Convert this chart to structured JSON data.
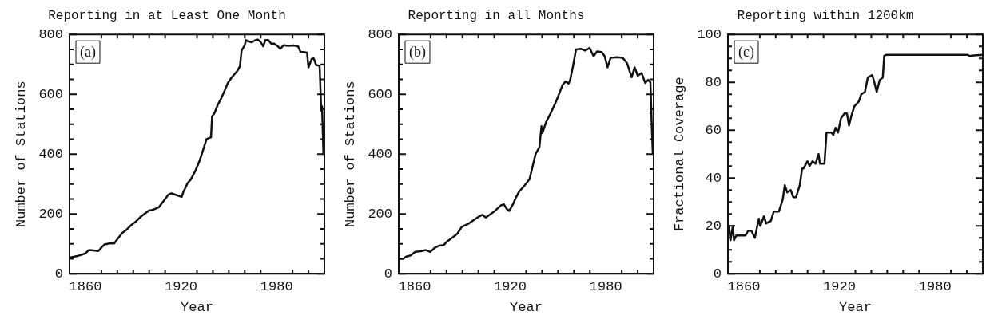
{
  "chart_data": [
    {
      "type": "line",
      "title": "Reporting in at Least One Month",
      "xlabel": "Year",
      "ylabel": "Number of Stations",
      "annotations": [
        "(a)"
      ],
      "x": [
        1850,
        1854.9,
        1860,
        1862.1,
        1865.1,
        1868.1,
        1869.9,
        1872,
        1875,
        1878,
        1880,
        1883,
        1886,
        1889,
        1892,
        1895,
        1898,
        1899.8,
        1902,
        1906,
        1908,
        1910,
        1912,
        1914,
        1916.6,
        1920.4,
        1921.5,
        1924,
        1926,
        1929,
        1931.6,
        1934.4,
        1936,
        1938.8,
        1939.5,
        1941,
        1943,
        1945,
        1947.6,
        1949.4,
        1951.9,
        1954,
        1955.6,
        1957,
        1958,
        1960,
        1960.7,
        1962,
        1964.4,
        1966.3,
        1968.2,
        1970,
        1971.6,
        1972.9,
        1974.8,
        1976.6,
        1978.5,
        1980.4,
        1982.3,
        1984.5,
        1987,
        1990.7,
        1993.5,
        1995,
        1996.9,
        1999.1,
        2000,
        2002,
        2003.3,
        2004.8,
        2007,
        2008,
        2008.5,
        2009.4
      ],
      "series": [
        {
          "color": "#111111",
          "values": [
            54,
            59,
            68,
            79,
            78,
            76,
            87,
            98,
            101,
            101,
            115,
            136,
            148,
            164,
            176,
            192,
            204,
            211,
            213,
            222,
            236,
            250,
            264,
            269,
            264,
            257,
            274,
            302,
            314,
            344,
            377,
            423,
            450,
            456,
            526,
            537,
            564,
            584,
            615,
            638,
            657,
            670,
            680,
            694,
            746,
            764,
            781,
            777,
            774,
            780,
            783,
            774,
            760,
            781,
            781,
            769,
            769,
            762,
            752,
            764,
            762,
            763,
            760,
            742,
            741,
            739,
            690,
            718,
            720,
            698,
            695,
            545,
            560,
            400
          ]
        }
      ],
      "xlim": [
        1850,
        2010
      ],
      "xticks": [
        {
          "value": 1850,
          "label": null
        },
        1860,
        {
          "value": 1870,
          "label": null
        },
        {
          "value": 1880,
          "label": null
        },
        {
          "value": 1890,
          "label": null
        },
        {
          "value": 1900,
          "label": null
        },
        {
          "value": 1910,
          "label": null
        },
        1920,
        {
          "value": 1930,
          "label": null
        },
        {
          "value": 1940,
          "label": null
        },
        {
          "value": 1950,
          "label": null
        },
        {
          "value": 1960,
          "label": null
        },
        {
          "value": 1970,
          "label": null
        },
        1980,
        {
          "value": 1990,
          "label": null
        },
        {
          "value": 2000,
          "label": null
        },
        {
          "value": 2010,
          "label": null
        }
      ],
      "ylim": [
        0,
        800
      ],
      "yticks": [
        0,
        {
          "value": 50,
          "label": null
        },
        {
          "value": 100,
          "label": null
        },
        {
          "value": 150,
          "label": null
        },
        200,
        {
          "value": 250,
          "label": null
        },
        {
          "value": 300,
          "label": null
        },
        {
          "value": 350,
          "label": null
        },
        400,
        {
          "value": 450,
          "label": null
        },
        {
          "value": 500,
          "label": null
        },
        {
          "value": 550,
          "label": null
        },
        600,
        {
          "value": 650,
          "label": null
        },
        {
          "value": 700,
          "label": null
        },
        {
          "value": 750,
          "label": null
        },
        800
      ]
    },
    {
      "type": "line",
      "title": "Reporting in all Months",
      "xlabel": "Year",
      "ylabel": "Number of Stations",
      "annotations": [
        "(b)"
      ],
      "x": [
        1850,
        1852.8,
        1854.7,
        1857.5,
        1860.4,
        1864,
        1867,
        1869.8,
        1872.6,
        1875.5,
        1878.3,
        1880.2,
        1884,
        1886.8,
        1889.6,
        1893.4,
        1897.2,
        1900,
        1902.5,
        1904.7,
        1907.6,
        1910.4,
        1914.2,
        1916,
        1917.6,
        1919.4,
        1921.7,
        1923.6,
        1925.5,
        1929.3,
        1932.1,
        1934,
        1935.9,
        1938.3,
        1939.6,
        1940.2,
        1942.5,
        1945.3,
        1948.1,
        1950,
        1952.8,
        1954.7,
        1956.6,
        1957.6,
        1959.4,
        1961.3,
        1964.2,
        1967,
        1969.8,
        1972.3,
        1974.5,
        1977.4,
        1979.3,
        1981.1,
        1983,
        1986.8,
        1990.6,
        1993.4,
        1996.2,
        1998.1,
        2000,
        2002.5,
        2004.7,
        2006.6,
        2008,
        2008.8,
        2009.5
      ],
      "series": [
        {
          "color": "#111111",
          "values": [
            51,
            50,
            57,
            61,
            73,
            75,
            79,
            73,
            87,
            94,
            96,
            107,
            122,
            134,
            157,
            166,
            180,
            190,
            197,
            188,
            199,
            210,
            229,
            232,
            218,
            210,
            232,
            255,
            274,
            297,
            316,
            358,
            400,
            423,
            493,
            470,
            507,
            536,
            568,
            592,
            631,
            643,
            636,
            648,
            694,
            750,
            752,
            746,
            755,
            727,
            743,
            741,
            727,
            690,
            722,
            724,
            722,
            703,
            657,
            690,
            662,
            671,
            638,
            648,
            640,
            500,
            400
          ]
        }
      ],
      "xlim": [
        1850,
        2010
      ],
      "xticks": [
        {
          "value": 1850,
          "label": null
        },
        1860,
        {
          "value": 1870,
          "label": null
        },
        {
          "value": 1880,
          "label": null
        },
        {
          "value": 1890,
          "label": null
        },
        {
          "value": 1900,
          "label": null
        },
        {
          "value": 1910,
          "label": null
        },
        1920,
        {
          "value": 1930,
          "label": null
        },
        {
          "value": 1940,
          "label": null
        },
        {
          "value": 1950,
          "label": null
        },
        {
          "value": 1960,
          "label": null
        },
        {
          "value": 1970,
          "label": null
        },
        1980,
        {
          "value": 1990,
          "label": null
        },
        {
          "value": 2000,
          "label": null
        },
        {
          "value": 2010,
          "label": null
        }
      ],
      "ylim": [
        0,
        800
      ],
      "yticks": [
        0,
        {
          "value": 50,
          "label": null
        },
        {
          "value": 100,
          "label": null
        },
        {
          "value": 150,
          "label": null
        },
        200,
        {
          "value": 250,
          "label": null
        },
        {
          "value": 300,
          "label": null
        },
        {
          "value": 350,
          "label": null
        },
        400,
        {
          "value": 450,
          "label": null
        },
        {
          "value": 500,
          "label": null
        },
        {
          "value": 550,
          "label": null
        },
        600,
        {
          "value": 650,
          "label": null
        },
        {
          "value": 700,
          "label": null
        },
        {
          "value": 750,
          "label": null
        },
        800
      ]
    },
    {
      "type": "line",
      "title": "Reporting within 1200km",
      "xlabel": "Year",
      "ylabel": "Fractional Coverage",
      "annotations": [
        "(c)"
      ],
      "x": [
        1850,
        1850.6,
        1851.6,
        1853.1,
        1853.8,
        1855.3,
        1861,
        1862.8,
        1864.7,
        1866.9,
        1869.4,
        1870.3,
        1872.6,
        1874,
        1876.9,
        1878.8,
        1882,
        1884.4,
        1885.7,
        1887.2,
        1889.4,
        1891,
        1892.8,
        1895.1,
        1896.6,
        1897.5,
        1899.9,
        1901.3,
        1903.1,
        1905,
        1906.9,
        1907.8,
        1910.6,
        1911.9,
        1914.9,
        1916.2,
        1917.6,
        1919.1,
        1921,
        1923.2,
        1924.7,
        1926,
        1927.5,
        1929.4,
        1932.2,
        1933.7,
        1936,
        1937.8,
        1940.6,
        1941.9,
        1943.4,
        1945.3,
        1947.2,
        1948.1,
        1949.4,
        1962.2,
        1980.9,
        2000.6,
        2001.6,
        2004.4,
        2010
      ],
      "series": [
        {
          "color": "#111111",
          "values": [
            20,
            20,
            14,
            20,
            14,
            16,
            16,
            18,
            18,
            15,
            23,
            20,
            24,
            21,
            22,
            26,
            26,
            31,
            37,
            34,
            35,
            32,
            32,
            37,
            44,
            44,
            47,
            45,
            47,
            46,
            50,
            46,
            46,
            59,
            59,
            58,
            61,
            59,
            65,
            67,
            67,
            62,
            66,
            70,
            72,
            75,
            76,
            82,
            83,
            80,
            76,
            81,
            82,
            91,
            91.5,
            91.5,
            91.5,
            91.5,
            91,
            91.2,
            91.5
          ]
        }
      ],
      "xlim": [
        1850,
        2010
      ],
      "xticks": [
        {
          "value": 1850,
          "label": null
        },
        1860,
        {
          "value": 1870,
          "label": null
        },
        {
          "value": 1880,
          "label": null
        },
        {
          "value": 1890,
          "label": null
        },
        {
          "value": 1900,
          "label": null
        },
        {
          "value": 1910,
          "label": null
        },
        1920,
        {
          "value": 1930,
          "label": null
        },
        {
          "value": 1940,
          "label": null
        },
        {
          "value": 1950,
          "label": null
        },
        {
          "value": 1960,
          "label": null
        },
        {
          "value": 1970,
          "label": null
        },
        1980,
        {
          "value": 1990,
          "label": null
        },
        {
          "value": 2000,
          "label": null
        },
        {
          "value": 2010,
          "label": null
        }
      ],
      "ylim": [
        0,
        100
      ],
      "yticks": [
        0,
        {
          "value": 5,
          "label": null
        },
        {
          "value": 10,
          "label": null
        },
        {
          "value": 15,
          "label": null
        },
        20,
        {
          "value": 25,
          "label": null
        },
        {
          "value": 30,
          "label": null
        },
        {
          "value": 35,
          "label": null
        },
        40,
        {
          "value": 45,
          "label": null
        },
        {
          "value": 50,
          "label": null
        },
        {
          "value": 55,
          "label": null
        },
        60,
        {
          "value": 65,
          "label": null
        },
        {
          "value": 70,
          "label": null
        },
        {
          "value": 75,
          "label": null
        },
        80,
        {
          "value": 85,
          "label": null
        },
        {
          "value": 90,
          "label": null
        },
        {
          "value": 95,
          "label": null
        },
        100
      ]
    }
  ]
}
